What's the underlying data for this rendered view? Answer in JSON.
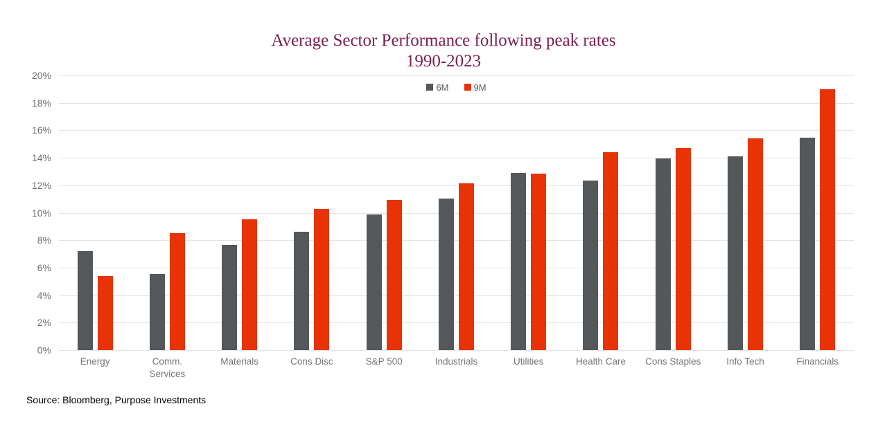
{
  "title": {
    "line1": "Average Sector Performance following peak rates",
    "line2": "1990-2023",
    "color": "#7B1E4E"
  },
  "source": "Source: Bloomberg, Purpose Investments",
  "colors": {
    "series_6m": "#55585A",
    "series_9m": "#E83307",
    "gridline": "#E4E4E4",
    "axis_text": "#6E6E6E",
    "category_text": "#757575"
  },
  "chart_data": {
    "type": "bar",
    "title": "Average Sector Performance following peak rates 1990-2023",
    "categories": [
      "Energy",
      "Comm. Services",
      "Materials",
      "Cons Disc",
      "S&P 500",
      "Industrials",
      "Utilities",
      "Health Care",
      "Cons Staples",
      "Info Tech",
      "Financials"
    ],
    "series": [
      {
        "name": "6M",
        "color": "#55585A",
        "values": [
          7.2,
          5.55,
          7.65,
          8.6,
          9.85,
          11.05,
          12.9,
          12.35,
          13.95,
          14.1,
          15.45
        ]
      },
      {
        "name": "9M",
        "color": "#E83307",
        "values": [
          5.4,
          8.5,
          9.5,
          10.3,
          10.95,
          12.15,
          12.85,
          14.4,
          14.7,
          15.4,
          19.0
        ]
      }
    ],
    "xlabel": "",
    "ylabel": "",
    "ylim": [
      0,
      20
    ],
    "ytick_step": 2,
    "ytick_format": "percent",
    "grid": true,
    "legend_position": "top-center"
  }
}
